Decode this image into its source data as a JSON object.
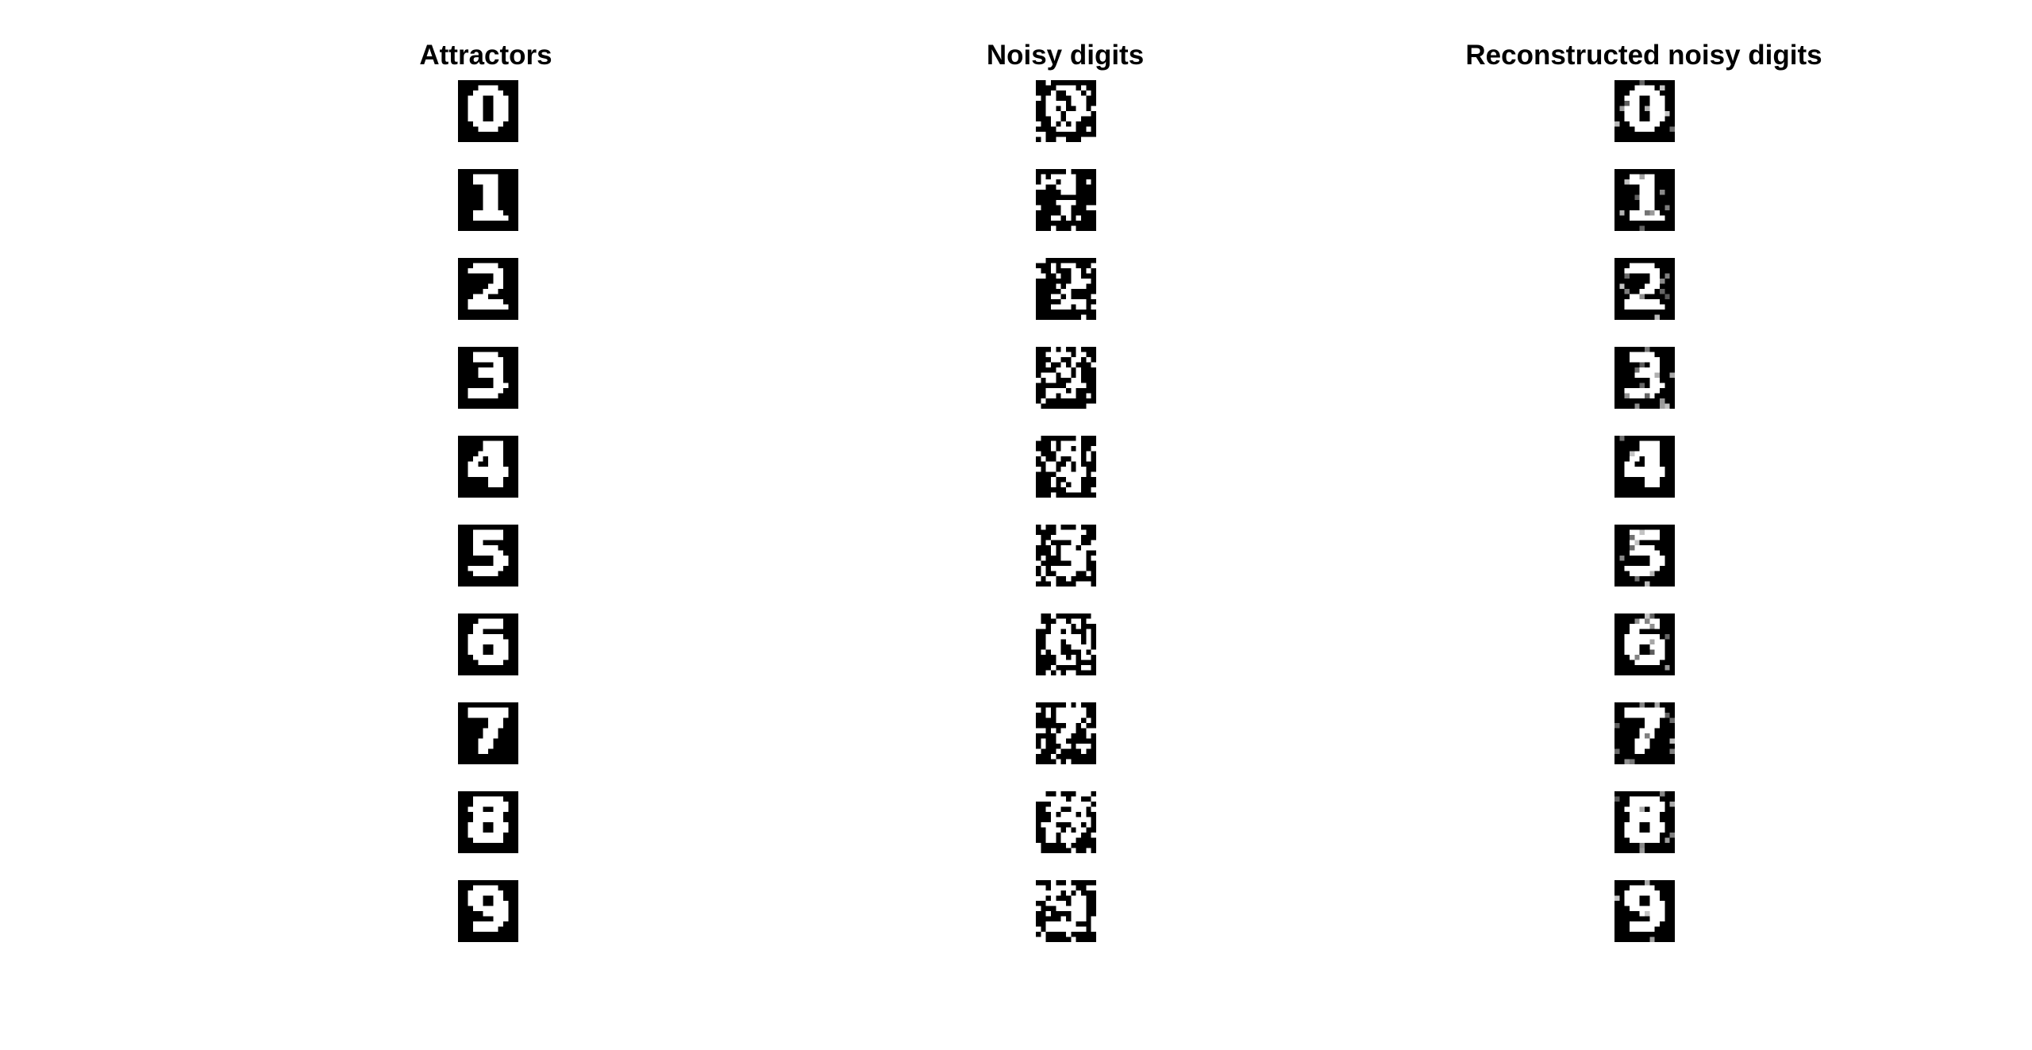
{
  "panels": {
    "attractors": {
      "title": "Attractors",
      "digits": [
        "0",
        "1",
        "2",
        "3",
        "4",
        "5",
        "6",
        "7",
        "8",
        "9"
      ]
    },
    "noisy": {
      "title": "Noisy digits",
      "digits": [
        "0",
        "1",
        "2",
        "3",
        "4",
        "5",
        "6",
        "7",
        "8",
        "9"
      ]
    },
    "reconstructed": {
      "title": "Reconstructed noisy digits",
      "digits": [
        "0",
        "1",
        "2",
        "3",
        "4",
        "5",
        "6",
        "7",
        "8",
        "9"
      ]
    }
  },
  "colors": {
    "background": "#ffffff",
    "digit_ink": "#ffffff",
    "digit_background": "#000000"
  }
}
